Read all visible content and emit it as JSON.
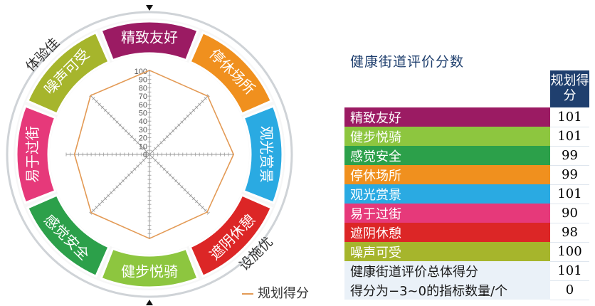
{
  "chart_data": {
    "type": "radar",
    "r_ticks": [
      "100",
      "90",
      "80",
      "70",
      "60",
      "50",
      "40",
      "30",
      "20",
      "10",
      "0"
    ],
    "rlim": [
      0,
      100
    ],
    "series": [
      {
        "name": "规划得分",
        "color": "#e39a55",
        "values": [
          101,
          99,
          101,
          98,
          101,
          99,
          90,
          100
        ]
      }
    ],
    "categories": [
      {
        "label": "精致友好",
        "color": "#9b1b63"
      },
      {
        "label": "停休场所",
        "color": "#f0901e"
      },
      {
        "label": "观光赏景",
        "color": "#2aaae2"
      },
      {
        "label": "遮阴休憩",
        "color": "#dc2626"
      },
      {
        "label": "健步悦骑",
        "color": "#8dc63f"
      },
      {
        "label": "感觉安全",
        "color": "#2ca04a"
      },
      {
        "label": "易于过街",
        "color": "#e6397a"
      },
      {
        "label": "噪声可受",
        "color": "#a6b52c"
      }
    ],
    "ring_labels": {
      "left": "体验佳",
      "right": "设施优"
    }
  },
  "legend": {
    "label": "规划得分"
  },
  "panel": {
    "title": "健康街道评价分数",
    "header": "规划得分",
    "rows": [
      {
        "label": "精致友好",
        "value": "101",
        "color": "#9b1b63"
      },
      {
        "label": "健步悦骑",
        "value": "101",
        "color": "#8dc63f"
      },
      {
        "label": "感觉安全",
        "value": "99",
        "color": "#2ca04a"
      },
      {
        "label": "停休场所",
        "value": "99",
        "color": "#f0901e"
      },
      {
        "label": "观光赏景",
        "value": "101",
        "color": "#2aaae2"
      },
      {
        "label": "易于过街",
        "value": "90",
        "color": "#e6397a"
      },
      {
        "label": "遮阴休憩",
        "value": "98",
        "color": "#dc2626"
      },
      {
        "label": "噪声可受",
        "value": "100",
        "color": "#a6b52c"
      }
    ],
    "summary": [
      {
        "label": "健康街道评价总体得分",
        "value": "101"
      },
      {
        "label": "得分为−3~0的指标数量/个",
        "value": "0"
      }
    ]
  }
}
